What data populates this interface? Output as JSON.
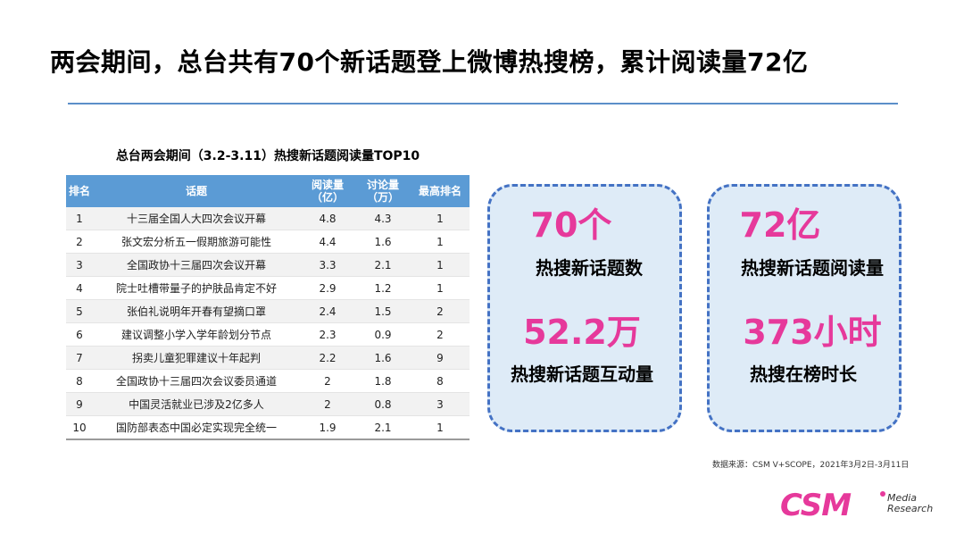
{
  "headline": "两会期间，总台共有70个新话题登上微博热搜榜，累计阅读量72亿",
  "table": {
    "title": "总台两会期间（3.2-3.11）热搜新话题阅读量TOP10",
    "headers": {
      "rank": "排名",
      "topic": "话题",
      "reads": "阅读量\n（亿）",
      "discussions": "讨论量\n（万）",
      "top_rank": "最高排名"
    },
    "rows": [
      {
        "rank": "1",
        "topic": "十三届全国人大四次会议开幕",
        "reads": "4.8",
        "discussions": "4.3",
        "top_rank": "1"
      },
      {
        "rank": "2",
        "topic": "张文宏分析五一假期旅游可能性",
        "reads": "4.4",
        "discussions": "1.6",
        "top_rank": "1"
      },
      {
        "rank": "3",
        "topic": "全国政协十三届四次会议开幕",
        "reads": "3.3",
        "discussions": "2.1",
        "top_rank": "1"
      },
      {
        "rank": "4",
        "topic": "院士吐槽带量子的护肤品肯定不好",
        "reads": "2.9",
        "discussions": "1.2",
        "top_rank": "1"
      },
      {
        "rank": "5",
        "topic": "张伯礼说明年开春有望摘口罩",
        "reads": "2.4",
        "discussions": "1.5",
        "top_rank": "2"
      },
      {
        "rank": "6",
        "topic": "建议调整小学入学年龄划分节点",
        "reads": "2.3",
        "discussions": "0.9",
        "top_rank": "2"
      },
      {
        "rank": "7",
        "topic": "拐卖儿童犯罪建议十年起判",
        "reads": "2.2",
        "discussions": "1.6",
        "top_rank": "9"
      },
      {
        "rank": "8",
        "topic": "全国政协十三届四次会议委员通道",
        "reads": "2",
        "discussions": "1.8",
        "top_rank": "8"
      },
      {
        "rank": "9",
        "topic": "中国灵活就业已涉及2亿多人",
        "reads": "2",
        "discussions": "0.8",
        "top_rank": "3"
      },
      {
        "rank": "10",
        "topic": "国防部表态中国必定实现完全统一",
        "reads": "1.9",
        "discussions": "2.1",
        "top_rank": "1"
      }
    ]
  },
  "stats": [
    {
      "value": "70个",
      "label": "热搜新话题数"
    },
    {
      "value": "52.2万",
      "label": "热搜新话题互动量"
    },
    {
      "value": "72亿",
      "label": "热搜新话题阅读量"
    },
    {
      "value": "373小时",
      "label": "热搜在榜时长"
    }
  ],
  "source": "数据来源：CSM V+SCOPE，2021年3月2日-3月11日",
  "logo": {
    "mark": "CSM",
    "line1": "Media",
    "line2": "Research"
  },
  "colors": {
    "accent": "#e6399b",
    "header_blue": "#5b9bd5",
    "box_fill": "#deebf7",
    "box_border": "#4472c4"
  }
}
